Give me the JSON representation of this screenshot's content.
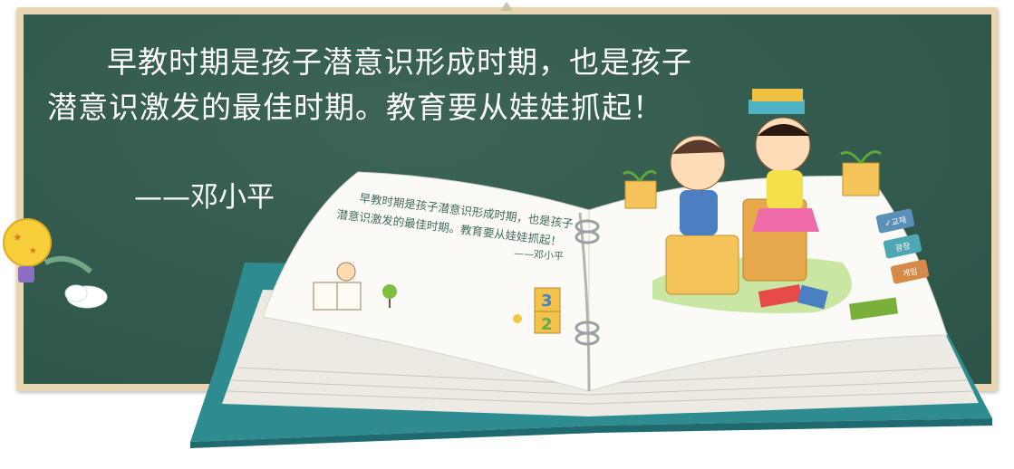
{
  "quote": {
    "line1": "早教时期是孩子潜意识形成时期，也是孩子",
    "line2": "潜意识激发的最佳时期。教育要从娃娃抓起！",
    "author": "——邓小平"
  },
  "book_page": {
    "line1": "早教时期是孩子潜意识形成时期，也是孩子",
    "line2": "潜意识激发的最佳时期。教育要从娃娃抓起！",
    "author": "——邓小平"
  },
  "book_tabs": [
    "✓교재",
    "광장",
    "게임"
  ],
  "blocks": [
    "3",
    "2"
  ],
  "colors": {
    "chalkboard": "#2f5a4c",
    "frame": "#e8d6b3",
    "book_cover": "#2f8d92",
    "page_text": "#3f6b5a"
  }
}
